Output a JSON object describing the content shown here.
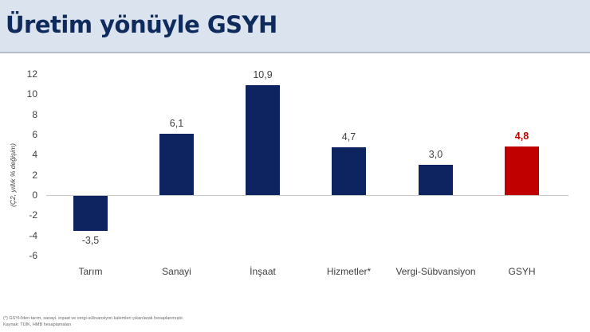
{
  "header": {
    "title": "Üretim yönüyle GSYH"
  },
  "chart_data": {
    "type": "bar",
    "title": "Üretim yönüyle GSYH",
    "xlabel": "",
    "ylabel": "(Ç2, yıllık % değişim)",
    "ylim": [
      -6,
      12
    ],
    "yticks": [
      "12",
      "10",
      "8",
      "6",
      "4",
      "2",
      "0",
      "-2",
      "-4",
      "-6"
    ],
    "grid": false,
    "legend": null,
    "categories": [
      "Tarım",
      "Sanayi",
      "İnşaat",
      "Hizmetler*",
      "Vergi-Sübvansiyon",
      "GSYH"
    ],
    "values": [
      -3.5,
      6.1,
      10.9,
      4.7,
      3.0,
      4.8
    ],
    "value_labels": [
      "-3,5",
      "6,1",
      "10,9",
      "4,7",
      "3,0",
      "4,8"
    ],
    "colors": [
      "#0d2461",
      "#0d2461",
      "#0d2461",
      "#0d2461",
      "#0d2461",
      "#c00000"
    ],
    "highlight_label_color": "#c00000"
  },
  "footnotes": {
    "note": "(*) GSYH'den tarım, sanayi, inşaat ve vergi-sübvansiyon kalemleri çıkarılarak hesaplanmıştır.",
    "source": "Kaynak: TÜİK, HMB hesaplamaları"
  }
}
